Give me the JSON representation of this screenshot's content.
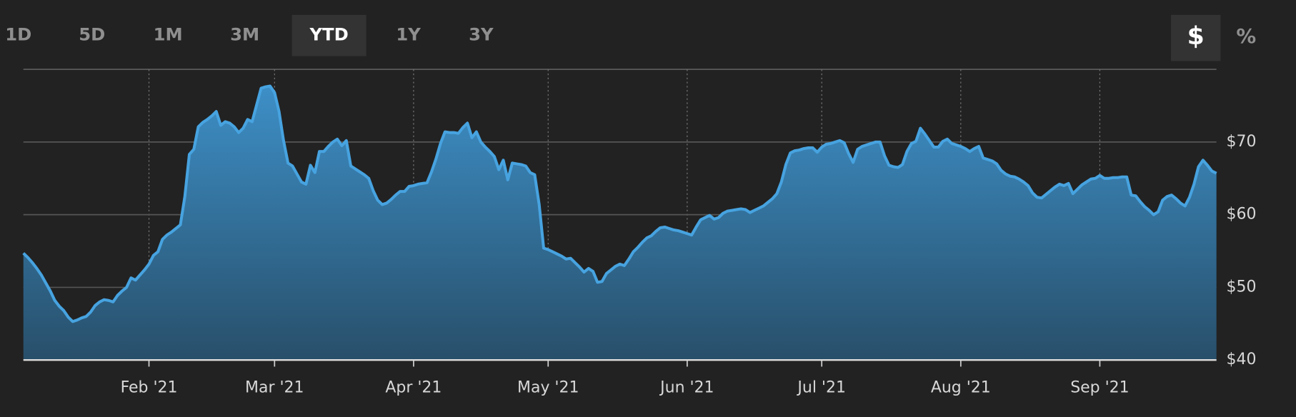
{
  "range_buttons": [
    "1D",
    "5D",
    "1M",
    "3M",
    "YTD",
    "1Y",
    "3Y"
  ],
  "active_range": "YTD",
  "unit_buttons": [
    "$",
    "%"
  ],
  "active_unit": "$",
  "chart_data": {
    "type": "area",
    "color": "#47a3e0",
    "grid": true,
    "ylim": [
      40,
      80
    ],
    "yticks": [
      {
        "value": 40,
        "label": "$40"
      },
      {
        "value": 50,
        "label": "$50"
      },
      {
        "value": 60,
        "label": "$60"
      },
      {
        "value": 70,
        "label": "$70"
      }
    ],
    "categories": [
      null,
      null,
      null,
      null,
      null,
      null,
      null,
      null,
      null,
      null,
      null,
      null,
      null,
      null,
      null,
      null,
      null,
      null,
      null,
      null,
      null,
      null,
      null,
      null,
      null,
      null,
      null,
      null,
      "Feb '21",
      null,
      null,
      null,
      null,
      null,
      null,
      null,
      null,
      null,
      null,
      null,
      null,
      null,
      null,
      null,
      null,
      null,
      null,
      null,
      null,
      null,
      null,
      null,
      null,
      null,
      null,
      null,
      "Mar '21",
      null,
      null,
      null,
      null,
      null,
      null,
      null,
      null,
      null,
      null,
      null,
      null,
      null,
      null,
      null,
      null,
      null,
      null,
      null,
      null,
      null,
      null,
      null,
      null,
      null,
      null,
      null,
      null,
      null,
      null,
      "Apr '21",
      null,
      null,
      null,
      null,
      null,
      null,
      null,
      null,
      null,
      null,
      null,
      null,
      null,
      null,
      null,
      null,
      null,
      null,
      null,
      null,
      null,
      null,
      null,
      null,
      null,
      null,
      null,
      null,
      null,
      "May '21",
      null,
      null,
      null,
      null,
      null,
      null,
      null,
      null,
      null,
      null,
      null,
      null,
      null,
      null,
      null,
      null,
      null,
      null,
      null,
      null,
      null,
      null,
      null,
      null,
      null,
      null,
      null,
      null,
      null,
      null,
      "Jun '21",
      null,
      null,
      null,
      null,
      null,
      null,
      null,
      null,
      null,
      null,
      null,
      null,
      null,
      null,
      null,
      null,
      null,
      null,
      null,
      null,
      null,
      null,
      null,
      null,
      null,
      null,
      null,
      null,
      null,
      "Jul '21",
      null,
      null,
      null,
      null,
      null,
      null,
      null,
      null,
      null,
      null,
      null,
      null,
      null,
      null,
      null,
      null,
      null,
      null,
      null,
      null,
      null,
      null,
      null,
      null,
      null,
      null,
      null,
      null,
      null,
      null,
      "Aug '21",
      null,
      null,
      null,
      null,
      null,
      null,
      null,
      null,
      null,
      null,
      null,
      null,
      null,
      null,
      null,
      null,
      null,
      null,
      null,
      null,
      null,
      null,
      null,
      null,
      null,
      null,
      null,
      null,
      null,
      null,
      "Sep '21",
      null,
      null,
      null,
      null,
      null,
      null,
      null,
      null,
      null,
      null,
      null,
      null,
      null,
      null,
      null,
      null,
      null,
      null,
      null,
      null,
      null,
      null,
      null,
      null,
      null,
      null
    ],
    "values": [
      54.7,
      54.1,
      53.4,
      52.6,
      51.7,
      50.6,
      49.5,
      48.2,
      47.4,
      46.8,
      45.9,
      45.3,
      45.5,
      45.8,
      46.0,
      46.6,
      47.5,
      48.0,
      48.3,
      48.2,
      48.0,
      48.9,
      49.5,
      50.0,
      51.3,
      51.0,
      51.7,
      52.4,
      53.2,
      54.4,
      54.9,
      56.6,
      57.2,
      57.6,
      58.1,
      58.6,
      62.5,
      68.3,
      69.0,
      72.1,
      72.7,
      73.1,
      73.6,
      74.2,
      72.3,
      72.8,
      72.6,
      72.1,
      71.3,
      71.9,
      73.1,
      72.8,
      75.1,
      77.4,
      77.6,
      77.7,
      76.8,
      74.2,
      70.2,
      67.1,
      66.7,
      65.6,
      64.5,
      64.2,
      66.8,
      65.8,
      68.7,
      68.7,
      69.4,
      70.0,
      70.4,
      69.5,
      70.2,
      66.7,
      66.3,
      65.9,
      65.5,
      65.0,
      63.3,
      62.0,
      61.4,
      61.6,
      62.1,
      62.7,
      63.2,
      63.2,
      63.9,
      64.0,
      64.2,
      64.3,
      64.4,
      65.9,
      67.7,
      69.8,
      71.4,
      71.3,
      71.3,
      71.2,
      72.0,
      72.6,
      70.6,
      71.4,
      70.0,
      69.3,
      68.7,
      68.0,
      66.2,
      67.5,
      64.8,
      67.1,
      67.0,
      66.9,
      66.7,
      65.8,
      65.5,
      61.4,
      55.4,
      55.2,
      54.9,
      54.6,
      54.3,
      53.9,
      54.0,
      53.4,
      52.8,
      52.1,
      52.6,
      52.2,
      50.7,
      50.8,
      51.9,
      52.4,
      52.9,
      53.2,
      53.0,
      53.9,
      54.9,
      55.5,
      56.2,
      56.8,
      57.1,
      57.7,
      58.2,
      58.3,
      58.1,
      57.9,
      57.8,
      57.6,
      57.4,
      57.2,
      58.3,
      59.3,
      59.6,
      59.9,
      59.4,
      59.6,
      60.2,
      60.5,
      60.6,
      60.7,
      60.8,
      60.7,
      60.3,
      60.6,
      60.9,
      61.2,
      61.7,
      62.2,
      62.9,
      64.5,
      66.9,
      68.5,
      68.8,
      68.9,
      69.1,
      69.2,
      69.2,
      68.6,
      69.3,
      69.7,
      69.8,
      70.0,
      70.2,
      69.9,
      68.4,
      67.2,
      69.0,
      69.4,
      69.6,
      69.8,
      70.0,
      70.0,
      68.1,
      66.8,
      66.6,
      66.5,
      66.9,
      68.7,
      69.8,
      70.1,
      71.9,
      71.1,
      70.2,
      69.3,
      69.3,
      70.1,
      70.4,
      69.8,
      69.6,
      69.4,
      69.1,
      68.7,
      69.1,
      69.4,
      67.8,
      67.6,
      67.4,
      67.0,
      66.1,
      65.6,
      65.3,
      65.2,
      64.9,
      64.5,
      64.0,
      63.0,
      62.4,
      62.3,
      62.8,
      63.3,
      63.8,
      64.2,
      64.0,
      64.3,
      62.9,
      63.5,
      64.1,
      64.5,
      64.9,
      65.0,
      65.4,
      65.0,
      65.0,
      65.1,
      65.1,
      65.2,
      65.2,
      62.7,
      62.6,
      61.8,
      61.1,
      60.6,
      60.0,
      60.4,
      62.0,
      62.5,
      62.7,
      62.2,
      61.6,
      61.2,
      62.4,
      64.2,
      66.6,
      67.5,
      66.8,
      66.0,
      65.7
    ]
  }
}
